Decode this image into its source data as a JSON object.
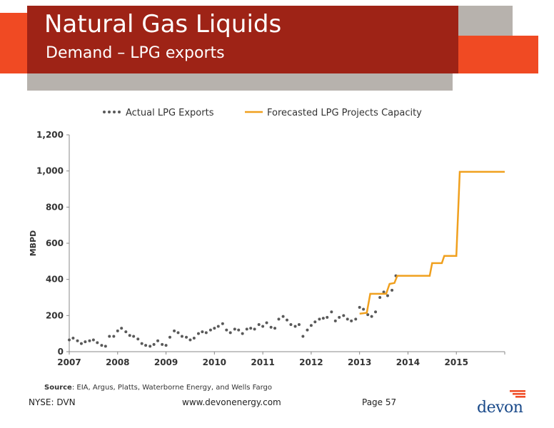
{
  "header": {
    "title": "Natural Gas Liquids",
    "subtitle": "Demand – LPG exports"
  },
  "colors": {
    "header_red": "#9e2316",
    "accent_orange_red": "#f04a23",
    "accent_gray": "#b7b2ad",
    "actual_series": "#595959",
    "forecast_series": "#f0a01e",
    "logo_blue": "#1a4a8a"
  },
  "chart_data": {
    "type": "line",
    "ylabel": "MBPD",
    "ylim": [
      0,
      1200
    ],
    "yticks": [
      0,
      200,
      400,
      600,
      800,
      1000,
      1200
    ],
    "ytick_labels": [
      "0",
      "200",
      "400",
      "600",
      "800",
      "1,000",
      "1,200"
    ],
    "xlim": [
      2007,
      2016
    ],
    "xticks": [
      2007,
      2008,
      2009,
      2010,
      2011,
      2012,
      2013,
      2014,
      2015
    ],
    "xtick_labels": [
      "2007",
      "2008",
      "2009",
      "2010",
      "2011",
      "2012",
      "2013",
      "2014",
      "2015"
    ],
    "legend_position": "top",
    "grid": false,
    "series": [
      {
        "name": "Actual LPG Exports",
        "style": "dotted",
        "x": [
          2007.0,
          2007.08,
          2007.17,
          2007.25,
          2007.33,
          2007.42,
          2007.5,
          2007.58,
          2007.67,
          2007.75,
          2007.83,
          2007.92,
          2008.0,
          2008.08,
          2008.17,
          2008.25,
          2008.33,
          2008.42,
          2008.5,
          2008.58,
          2008.67,
          2008.75,
          2008.83,
          2008.92,
          2009.0,
          2009.08,
          2009.17,
          2009.25,
          2009.33,
          2009.42,
          2009.5,
          2009.58,
          2009.67,
          2009.75,
          2009.83,
          2009.92,
          2010.0,
          2010.08,
          2010.17,
          2010.25,
          2010.33,
          2010.42,
          2010.5,
          2010.58,
          2010.67,
          2010.75,
          2010.83,
          2010.92,
          2011.0,
          2011.08,
          2011.17,
          2011.25,
          2011.33,
          2011.42,
          2011.5,
          2011.58,
          2011.67,
          2011.75,
          2011.83,
          2011.92,
          2012.0,
          2012.08,
          2012.17,
          2012.25,
          2012.33,
          2012.42,
          2012.5,
          2012.58,
          2012.67,
          2012.75,
          2012.83,
          2012.92,
          2013.0,
          2013.08,
          2013.17,
          2013.25,
          2013.33,
          2013.42,
          2013.5,
          2013.58,
          2013.67,
          2013.75
        ],
        "values": [
          65,
          75,
          60,
          45,
          55,
          60,
          65,
          50,
          35,
          30,
          85,
          85,
          115,
          130,
          110,
          90,
          85,
          70,
          45,
          35,
          30,
          40,
          60,
          40,
          35,
          80,
          115,
          105,
          85,
          80,
          65,
          75,
          100,
          110,
          105,
          120,
          130,
          140,
          155,
          120,
          105,
          125,
          120,
          100,
          125,
          130,
          125,
          150,
          140,
          160,
          135,
          130,
          180,
          195,
          175,
          150,
          140,
          150,
          85,
          120,
          145,
          165,
          180,
          185,
          190,
          220,
          170,
          190,
          200,
          180,
          170,
          180,
          245,
          235,
          205,
          195,
          220,
          300,
          330,
          310,
          340,
          420
        ]
      },
      {
        "name": "Forecasted LPG Projects Capacity",
        "style": "step",
        "x": [
          2013.0,
          2013.15,
          2013.22,
          2013.55,
          2013.62,
          2013.72,
          2013.78,
          2014.45,
          2014.5,
          2014.7,
          2014.75,
          2015.0,
          2015.07,
          2016.0
        ],
        "values": [
          210,
          215,
          320,
          320,
          375,
          380,
          420,
          420,
          490,
          490,
          530,
          530,
          995,
          995
        ]
      }
    ]
  },
  "source": {
    "label": "Source",
    "text": ": EIA, Argus, Platts, Waterborne Energy, and Wells Fargo"
  },
  "footer": {
    "ticker": "NYSE: DVN",
    "url": "www.devonenergy.com",
    "page": "Page 57",
    "logo_text": "devon"
  }
}
